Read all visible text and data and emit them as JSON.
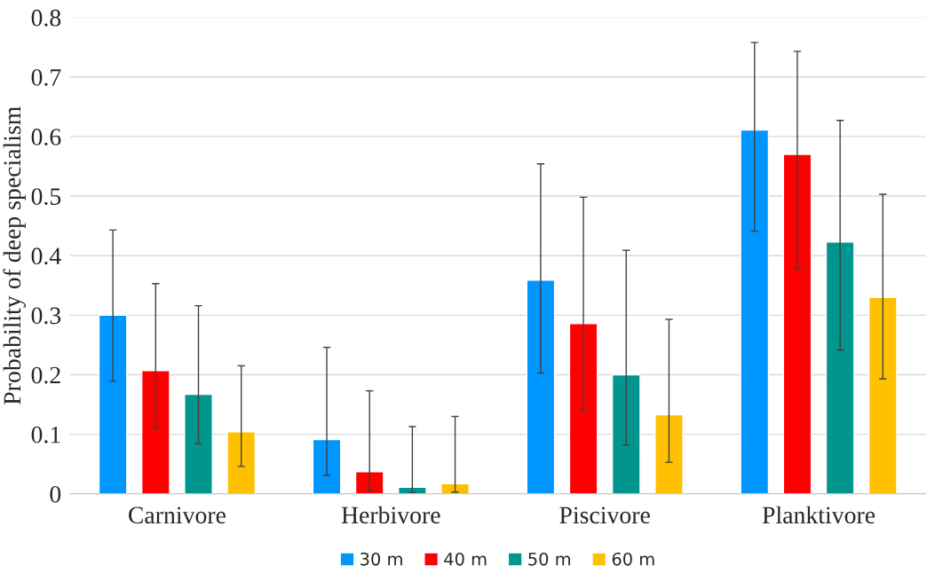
{
  "chart_data": {
    "type": "bar",
    "ylabel": "Probability of deep specialism",
    "categories": [
      "Carnivore",
      "Herbivore",
      "Piscivore",
      "Planktivore"
    ],
    "series": [
      {
        "name": "30 m",
        "color": "#0096ff",
        "values": [
          0.3,
          0.091,
          0.359,
          0.611
        ],
        "errors": [
          [
            0.189,
            0.443
          ],
          [
            0.031,
            0.246
          ],
          [
            0.203,
            0.554
          ],
          [
            0.441,
            0.758
          ]
        ]
      },
      {
        "name": "40 m",
        "color": "#ff0000",
        "values": [
          0.207,
          0.037,
          0.286,
          0.57
        ],
        "errors": [
          [
            0.111,
            0.353
          ],
          [
            0.006,
            0.173
          ],
          [
            0.139,
            0.498
          ],
          [
            0.379,
            0.743
          ]
        ]
      },
      {
        "name": "50 m",
        "color": "#00968f",
        "values": [
          0.167,
          0.011,
          0.2,
          0.423
        ],
        "errors": [
          [
            0.084,
            0.316
          ],
          [
            0.002,
            0.113
          ],
          [
            0.082,
            0.409
          ],
          [
            0.241,
            0.627
          ]
        ]
      },
      {
        "name": "60 m",
        "color": "#ffc000",
        "values": [
          0.104,
          0.017,
          0.133,
          0.33
        ],
        "errors": [
          [
            0.046,
            0.215
          ],
          [
            0.003,
            0.13
          ],
          [
            0.053,
            0.293
          ],
          [
            0.193,
            0.503
          ]
        ]
      }
    ],
    "ylim": [
      0,
      0.8
    ],
    "yticks": [
      0,
      0.1,
      0.2,
      0.3,
      0.4,
      0.5,
      0.6,
      0.7,
      0.8
    ],
    "grid": "y",
    "legend": "bottom"
  }
}
